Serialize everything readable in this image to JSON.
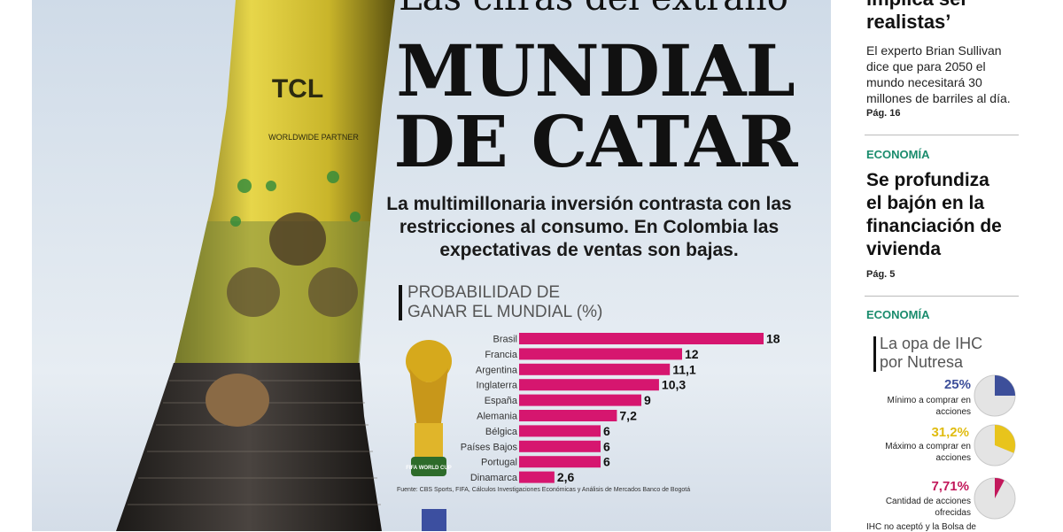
{
  "cover": {
    "kicker": "Las cifras del extraño",
    "headline_line1": "MUNDIAL",
    "headline_line2": "DE CATAR",
    "deck": "La multimillonaria inversión contrasta con las restricciones al consumo. En Colombia las expectativas de ventas son bajas.",
    "chart_title_line1": "PROBABILIDAD DE",
    "chart_title_line2": "GANAR EL MUNDIAL (%)",
    "source": "Fuente: CBS Sports, FIFA, Cálculos Investigaciones Económicas y Análisis de Mercados Banco de Bogotá",
    "tower_text_brand": "TCL",
    "tower_text_partner": "WORLDWIDE PARTNER",
    "trophy_text": "FIFA WORLD CUP"
  },
  "chart_data": {
    "type": "bar",
    "orientation": "horizontal",
    "title": "PROBABILIDAD DE GANAR EL MUNDIAL (%)",
    "categories": [
      "Brasil",
      "Francia",
      "Argentina",
      "Inglaterra",
      "España",
      "Alemania",
      "Bélgica",
      "Países Bajos",
      "Portugal",
      "Dinamarca"
    ],
    "values": [
      18,
      12,
      11.1,
      10.3,
      9,
      7.2,
      6,
      6,
      6,
      2.6
    ],
    "value_labels": [
      "18",
      "12",
      "11,1",
      "10,3",
      "9",
      "7,2",
      "6",
      "6",
      "6",
      "2,6"
    ],
    "color": "#d6166f",
    "xlim": [
      0,
      18
    ]
  },
  "sidebar": {
    "top_headline_line1": "implica ser",
    "top_headline_line2": "realistas’",
    "top_body": "El experto Brian Sullivan dice que para 2050 el mundo necesitará 30 millones de barriles al día.",
    "top_page": "Pág. 16",
    "section1": "ECONOMÍA",
    "story1_headline": "Se profundiza el bajón en la financiación de vivienda",
    "story1_page": "Pág. 5",
    "section2": "ECONOMÍA",
    "box_title_line1": "La opa de IHC",
    "box_title_line2": "por Nutresa",
    "pies": [
      {
        "pct": "25%",
        "value": 0.25,
        "color": "#3d4f9a",
        "label": "Mínimo a comprar en acciones"
      },
      {
        "pct": "31,2%",
        "value": 0.312,
        "color": "#e8c41c",
        "label": "Máximo a comprar en acciones"
      },
      {
        "pct": "7,71%",
        "value": 0.0771,
        "color": "#c2185b",
        "label": "Cantidad de acciones ofrecidas"
      }
    ],
    "bottom_text": "IHC no aceptó y la Bolsa de"
  }
}
